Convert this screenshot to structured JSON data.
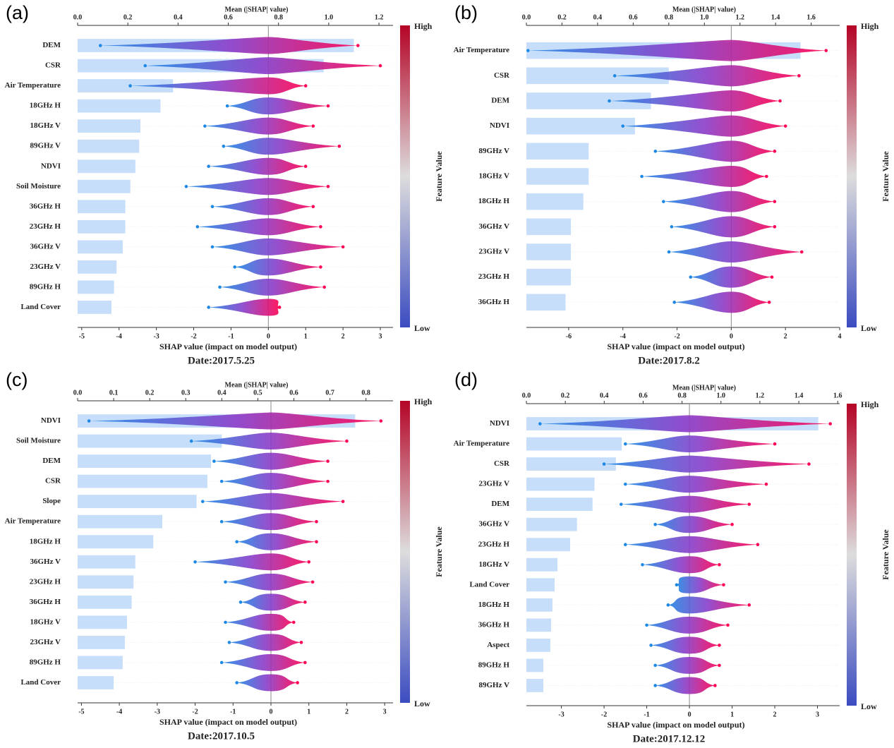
{
  "chart_data": [
    {
      "type": "shap_summary",
      "panel_label": "(a)",
      "x2label": "Mean (|SHAP| value)",
      "xlabel": "SHAP value (impact on model output)",
      "caption": "Date:2017.5.25",
      "colorbar_high": "High",
      "colorbar_low": "Low",
      "colorbar_label": "Feature Value",
      "categories": [
        "DEM",
        "CSR",
        "Air Temperature",
        "18GHz H",
        "18GHz V",
        "89GHz V",
        "NDVI",
        "Soil Moisture",
        "36GHz H",
        "23GHz H",
        "36GHz V",
        "23GHz V",
        "89GHz H",
        "Land Cover"
      ],
      "values": [
        1.1,
        0.98,
        0.38,
        0.33,
        0.25,
        0.245,
        0.23,
        0.21,
        0.19,
        0.19,
        0.18,
        0.155,
        0.145,
        0.135
      ],
      "shap_range": [
        [
          -4.5,
          2.4
        ],
        [
          -3.3,
          3.0
        ],
        [
          -3.7,
          1.0
        ],
        [
          -1.1,
          1.6
        ],
        [
          -1.7,
          1.2
        ],
        [
          -1.2,
          1.9
        ],
        [
          -1.6,
          1.0
        ],
        [
          -2.2,
          1.6
        ],
        [
          -1.5,
          1.2
        ],
        [
          -1.9,
          1.4
        ],
        [
          -1.5,
          2.0
        ],
        [
          -0.9,
          1.4
        ],
        [
          -1.3,
          1.5
        ],
        [
          -1.6,
          0.3
        ]
      ],
      "xlim": [
        -5.11,
        3.34
      ],
      "xticks": [
        -5,
        -4,
        -3,
        -2,
        -1,
        0,
        1,
        2,
        3
      ],
      "x2lim": [
        0,
        1.256
      ],
      "x2ticks": [
        {
          "value": 0,
          "label": "0.0"
        },
        0.2,
        0.4,
        0.6,
        0.8,
        {
          "value": 1,
          "label": "1.0"
        },
        1.2
      ],
      "bar_color": "#c6defa",
      "low_color": "#1e88e5",
      "mid_color": "#8a3cc8",
      "high_color": "#ff0052"
    },
    {
      "type": "shap_summary",
      "panel_label": "(b)",
      "x2label": "Mean (|SHAP| value)",
      "xlabel": "SHAP value (impact on model output)",
      "caption": "Date:2017.8.2",
      "colorbar_high": "High",
      "colorbar_low": "Low",
      "colorbar_label": "Feature Value",
      "categories": [
        "Air Temperature",
        "CSR",
        "DEM",
        "NDVI",
        "89GHz V",
        "18GHz V",
        "18GHz H",
        "36GHz V",
        "23GHz V",
        "23GHz H",
        "36GHz H"
      ],
      "values": [
        1.54,
        0.8,
        0.7,
        0.61,
        0.35,
        0.35,
        0.32,
        0.25,
        0.25,
        0.25,
        0.22
      ],
      "shap_range": [
        [
          -7.5,
          3.5
        ],
        [
          -4.3,
          2.5
        ],
        [
          -4.5,
          1.8
        ],
        [
          -4.0,
          2.0
        ],
        [
          -2.8,
          1.6
        ],
        [
          -3.3,
          1.3
        ],
        [
          -2.5,
          1.6
        ],
        [
          -2.2,
          1.6
        ],
        [
          -2.3,
          2.6
        ],
        [
          -1.5,
          1.5
        ],
        [
          -2.1,
          1.4
        ]
      ],
      "xlim": [
        -7.56,
        4.0
      ],
      "xticks": [
        -6,
        -4,
        -2,
        0,
        2,
        4
      ],
      "x2lim": [
        0,
        1.76
      ],
      "x2ticks": [
        {
          "value": 0,
          "label": "0.0"
        },
        0.2,
        0.4,
        0.6,
        0.8,
        {
          "value": 1,
          "label": "1.0"
        },
        1.2,
        1.4,
        1.6
      ],
      "bar_color": "#c6defa",
      "low_color": "#1e88e5",
      "mid_color": "#8a3cc8",
      "high_color": "#ff0052"
    },
    {
      "type": "shap_summary",
      "panel_label": "(c)",
      "x2label": "Mean (|SHAP| value)",
      "xlabel": "SHAP value (impact on model output)",
      "caption": "Date:2017.10.5",
      "colorbar_high": "High",
      "colorbar_low": "Low",
      "colorbar_label": "Feature Value",
      "categories": [
        "NDVI",
        "Soil Moisture",
        "DEM",
        "CSR",
        "Slope",
        "Air Temperature",
        "18GHz H",
        "36GHz V",
        "23GHz H",
        "36GHz H",
        "18GHz V",
        "23GHz V",
        "89GHz H",
        "Land Cover"
      ],
      "values": [
        0.77,
        0.4,
        0.37,
        0.36,
        0.33,
        0.235,
        0.21,
        0.16,
        0.155,
        0.15,
        0.137,
        0.131,
        0.125,
        0.1
      ],
      "shap_range": [
        [
          -4.8,
          2.9
        ],
        [
          -2.1,
          2.0
        ],
        [
          -1.5,
          1.5
        ],
        [
          -1.3,
          1.5
        ],
        [
          -1.8,
          1.9
        ],
        [
          -1.3,
          1.2
        ],
        [
          -0.9,
          1.2
        ],
        [
          -2.0,
          1.0
        ],
        [
          -1.2,
          1.1
        ],
        [
          -0.8,
          0.9
        ],
        [
          -1.2,
          0.6
        ],
        [
          -1.1,
          0.8
        ],
        [
          -1.3,
          0.9
        ],
        [
          -0.9,
          0.7
        ]
      ],
      "xlim": [
        -5.1,
        3.22
      ],
      "xticks": [
        -5,
        -4,
        -3,
        -2,
        -1,
        0,
        1,
        2,
        3
      ],
      "x2lim": [
        0,
        0.875
      ],
      "x2ticks": [
        {
          "value": 0,
          "label": "0.0"
        },
        0.1,
        0.2,
        0.3,
        0.4,
        0.5,
        0.6,
        0.7,
        0.8
      ],
      "bar_color": "#c6defa",
      "low_color": "#1e88e5",
      "mid_color": "#8a3cc8",
      "high_color": "#ff0052"
    },
    {
      "type": "shap_summary",
      "panel_label": "(d)",
      "x2label": "Mean (|SHAP| value)",
      "xlabel": "SHAP value (impact on model output)",
      "caption": "Date:2017.12.12",
      "colorbar_high": "High",
      "colorbar_low": "Low",
      "colorbar_label": "Feature Value",
      "categories": [
        "NDVI",
        "Air Temperature",
        "CSR",
        "23GHz V",
        "DEM",
        "36GHz V",
        "23GHz H",
        "18GHz V",
        "Land Cover",
        "18GHz H",
        "36GHz H",
        "Aspect",
        "89GHz H",
        "89GHz V"
      ],
      "values": [
        1.5,
        0.49,
        0.46,
        0.35,
        0.34,
        0.26,
        0.225,
        0.16,
        0.145,
        0.134,
        0.127,
        0.123,
        0.087,
        0.087
      ],
      "shap_range": [
        [
          -3.5,
          3.3
        ],
        [
          -1.5,
          2.0
        ],
        [
          -2.0,
          2.8
        ],
        [
          -1.5,
          1.8
        ],
        [
          -1.6,
          1.4
        ],
        [
          -0.8,
          1.0
        ],
        [
          -1.5,
          1.6
        ],
        [
          -1.1,
          0.7
        ],
        [
          -0.3,
          0.8
        ],
        [
          -0.5,
          1.4
        ],
        [
          -1.0,
          0.9
        ],
        [
          -0.9,
          0.7
        ],
        [
          -0.8,
          0.7
        ],
        [
          -0.8,
          0.6
        ]
      ],
      "xlim": [
        -3.82,
        3.52
      ],
      "xticks": [
        -3,
        -2,
        -1,
        0,
        1,
        2,
        3
      ],
      "x2lim": [
        0,
        1.61
      ],
      "x2ticks": [
        {
          "value": 0,
          "label": "0.0"
        },
        0.2,
        0.4,
        0.6,
        0.8,
        {
          "value": 1,
          "label": "1.0"
        },
        1.2,
        1.4,
        1.6
      ],
      "bar_color": "#c6defa",
      "low_color": "#1e88e5",
      "mid_color": "#8a3cc8",
      "high_color": "#ff0052"
    }
  ]
}
